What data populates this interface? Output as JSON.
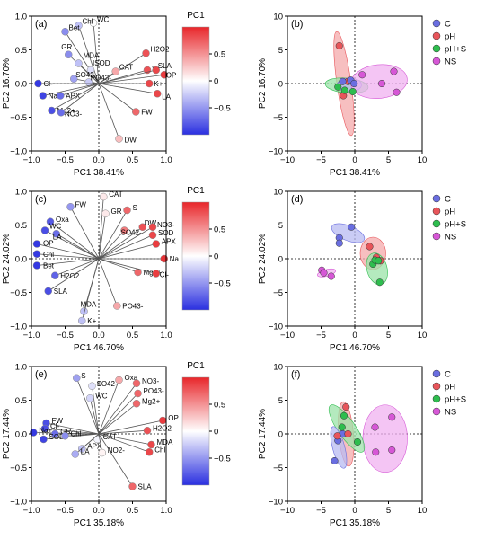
{
  "colors": {
    "C": "#6a6ee0",
    "pH": "#e8555a",
    "pH+S": "#2ebd4e",
    "NS": "#d657d6",
    "C_fill": "#b8bbf2",
    "pH_fill": "#f4a9ab",
    "pH+S_fill": "#9be3a8",
    "NS_fill": "#f0b2f0"
  },
  "colorbar": {
    "title": "PC1",
    "ticks": [
      "0.5",
      "0",
      "−0.5"
    ]
  },
  "chart_data": [
    {
      "panel": "(a)",
      "type": "scatter",
      "kind": "loading",
      "xlabel": "PC1 38.41%",
      "ylabel": "PC2 16.70%",
      "xlim": [
        -1.0,
        1.0
      ],
      "ylim": [
        -1.0,
        1.0
      ],
      "xticks": [
        "−1.0",
        "−0.5",
        "0.0",
        "0.5",
        "1.0"
      ],
      "yticks": [
        "−1.0",
        "−0.5",
        "0.0",
        "0.5",
        "1.0"
      ],
      "points": [
        {
          "label": "WC",
          "x": -0.08,
          "y": 0.9,
          "v": 0.0,
          "lx": 4,
          "ly": -1
        },
        {
          "label": "Chl",
          "x": -0.3,
          "y": 0.86,
          "v": -0.3,
          "lx": 4,
          "ly": -2
        },
        {
          "label": "Bet",
          "x": -0.5,
          "y": 0.77,
          "v": -0.55,
          "lx": 4,
          "ly": -2
        },
        {
          "label": "GR",
          "x": -0.45,
          "y": 0.43,
          "v": -0.55,
          "lx": -8,
          "ly": -6
        },
        {
          "label": "MDA",
          "x": -0.3,
          "y": 0.3,
          "v": -0.3,
          "lx": 0,
          "ly": -6
        },
        {
          "label": "ISOD",
          "x": -0.12,
          "y": 0.2,
          "v": -0.15,
          "lx": 2,
          "ly": -5
        },
        {
          "label": "SO42-",
          "x": -0.37,
          "y": 0.07,
          "v": -0.45,
          "lx": 2,
          "ly": -2
        },
        {
          "label": "PO43-",
          "x": -0.15,
          "y": 0.02,
          "v": -0.25,
          "lx": 2,
          "ly": -2
        },
        {
          "label": "Cl-",
          "x": -0.9,
          "y": 0.0,
          "v": -0.95,
          "lx": 6,
          "ly": 3
        },
        {
          "label": "Na+",
          "x": -0.83,
          "y": -0.18,
          "v": -0.9,
          "lx": 6,
          "ly": 3
        },
        {
          "label": "APX",
          "x": -0.57,
          "y": -0.18,
          "v": -0.7,
          "lx": 6,
          "ly": 3
        },
        {
          "label": "Mg2+",
          "x": -0.7,
          "y": -0.4,
          "v": -0.85,
          "lx": 6,
          "ly": 3
        },
        {
          "label": "NO3-",
          "x": -0.56,
          "y": -0.43,
          "v": -0.7,
          "lx": 4,
          "ly": 4
        },
        {
          "label": "H2O2",
          "x": 0.7,
          "y": 0.45,
          "v": 0.8,
          "lx": 5,
          "ly": -2
        },
        {
          "label": "CAT",
          "x": 0.25,
          "y": 0.18,
          "v": 0.4,
          "lx": 4,
          "ly": -2
        },
        {
          "label": "S",
          "x": 0.72,
          "y": 0.2,
          "v": 0.8,
          "lx": 5,
          "ly": 1
        },
        {
          "label": "SLA",
          "x": 0.85,
          "y": 0.2,
          "v": 0.85,
          "lx": 2,
          "ly": -2
        },
        {
          "label": "OP",
          "x": 0.97,
          "y": 0.13,
          "v": 0.9,
          "lx": 2,
          "ly": 3
        },
        {
          "label": "K+",
          "x": 0.75,
          "y": 0.0,
          "v": 0.85,
          "lx": 5,
          "ly": 3
        },
        {
          "label": "LA",
          "x": 0.87,
          "y": -0.15,
          "v": 0.85,
          "lx": 0,
          "ly": 6
        },
        {
          "label": "FW",
          "x": 0.55,
          "y": -0.42,
          "v": 0.7,
          "lx": 6,
          "ly": 3
        },
        {
          "label": "DW",
          "x": 0.3,
          "y": -0.82,
          "v": 0.3,
          "lx": 6,
          "ly": 4
        }
      ]
    },
    {
      "panel": "(b)",
      "type": "scatter",
      "kind": "score",
      "xlabel": "PC1 38.41%",
      "ylabel": "PC2 16.70%",
      "xlim": [
        -10,
        10
      ],
      "ylim": [
        -10,
        10
      ],
      "xticks": [
        "−10",
        "−5",
        "0",
        "5",
        "10"
      ],
      "yticks": [
        "−10",
        "−5",
        "0",
        "5",
        "10"
      ],
      "ellipses": [
        {
          "group": "pH",
          "cx": -1.6,
          "cy": 0.0,
          "rx": 1.05,
          "ry": 7.8,
          "angle": 8
        },
        {
          "group": "pH+S",
          "cx": -1.2,
          "cy": -0.3,
          "rx": 3.2,
          "ry": 1.1,
          "angle": -5
        },
        {
          "group": "C",
          "cx": -0.8,
          "cy": -0.2,
          "rx": 1.8,
          "ry": 1.0,
          "angle": 0
        },
        {
          "group": "NS",
          "cx": 3.6,
          "cy": 0.3,
          "rx": 4.2,
          "ry": 2.5,
          "angle": 6
        }
      ],
      "points": [
        {
          "group": "pH",
          "x": -2.3,
          "y": 5.6
        },
        {
          "group": "pH",
          "x": -1.7,
          "y": -1.8
        },
        {
          "group": "pH",
          "x": -1.0,
          "y": 0.3
        },
        {
          "group": "pH+S",
          "x": -2.5,
          "y": -0.5
        },
        {
          "group": "pH+S",
          "x": -0.3,
          "y": -1.2
        },
        {
          "group": "pH+S",
          "x": -1.5,
          "y": -1.0
        },
        {
          "group": "C",
          "x": -1.8,
          "y": 0.3
        },
        {
          "group": "C",
          "x": -0.6,
          "y": 0.5
        },
        {
          "group": "C",
          "x": -0.1,
          "y": 0.0
        },
        {
          "group": "NS",
          "x": 1.1,
          "y": 1.3
        },
        {
          "group": "NS",
          "x": 4.0,
          "y": 0.0
        },
        {
          "group": "NS",
          "x": 5.8,
          "y": 1.8
        },
        {
          "group": "NS",
          "x": 6.2,
          "y": -1.3
        }
      ]
    },
    {
      "panel": "(c)",
      "type": "scatter",
      "kind": "loading",
      "xlabel": "PC1 46.70%",
      "ylabel": "PC2 24.02%",
      "xlim": [
        -1.0,
        1.0
      ],
      "ylim": [
        -1.0,
        1.0
      ],
      "xticks": [
        "−1.0",
        "−0.5",
        "0.0",
        "0.5",
        "1.0"
      ],
      "yticks": [
        "−1.0",
        "−0.5",
        "0.0",
        "0.5",
        "1.0"
      ],
      "points": [
        {
          "label": "FW",
          "x": -0.42,
          "y": 0.77,
          "v": -0.5,
          "lx": 5,
          "ly": 0
        },
        {
          "label": "Oxa",
          "x": -0.72,
          "y": 0.55,
          "v": -0.8,
          "lx": 6,
          "ly": 0
        },
        {
          "label": "WC",
          "x": -0.8,
          "y": 0.42,
          "v": -0.85,
          "lx": 5,
          "ly": -2
        },
        {
          "label": "LA",
          "x": -0.63,
          "y": 0.37,
          "v": -0.7,
          "lx": -4,
          "ly": 6
        },
        {
          "label": "OP",
          "x": -0.92,
          "y": 0.22,
          "v": -0.95,
          "lx": 7,
          "ly": 2
        },
        {
          "label": "Chl",
          "x": -0.92,
          "y": 0.07,
          "v": -0.95,
          "lx": 7,
          "ly": 3
        },
        {
          "label": "Bet",
          "x": -0.92,
          "y": -0.1,
          "v": -0.95,
          "lx": 7,
          "ly": 3
        },
        {
          "label": "H2O2",
          "x": -0.65,
          "y": -0.25,
          "v": -0.75,
          "lx": 6,
          "ly": 3
        },
        {
          "label": "SLA",
          "x": -0.75,
          "y": -0.48,
          "v": -0.85,
          "lx": 6,
          "ly": 3
        },
        {
          "label": "MDA",
          "x": -0.22,
          "y": -0.78,
          "v": -0.3,
          "lx": -4,
          "ly": -5
        },
        {
          "label": "K+",
          "x": -0.25,
          "y": -0.92,
          "v": -0.3,
          "lx": 6,
          "ly": 3
        },
        {
          "label": "CAT",
          "x": 0.07,
          "y": 0.92,
          "v": 0.1,
          "lx": 6,
          "ly": 0
        },
        {
          "label": "GR",
          "x": 0.1,
          "y": 0.67,
          "v": 0.1,
          "lx": 6,
          "ly": 0
        },
        {
          "label": "S",
          "x": 0.42,
          "y": 0.72,
          "v": 0.7,
          "lx": 6,
          "ly": 0
        },
        {
          "label": "SO42-",
          "x": 0.38,
          "y": 0.42,
          "v": 0.6,
          "lx": -4,
          "ly": 5
        },
        {
          "label": "DW",
          "x": 0.65,
          "y": 0.47,
          "v": 0.8,
          "lx": 2,
          "ly": -2
        },
        {
          "label": "NO3-",
          "x": 0.8,
          "y": 0.47,
          "v": 0.85,
          "lx": 0,
          "ly": 0
        },
        {
          "label": "SOD",
          "x": 0.8,
          "y": 0.35,
          "v": 0.85,
          "lx": 6,
          "ly": 0
        },
        {
          "label": "APX",
          "x": 0.85,
          "y": 0.22,
          "v": 0.9,
          "lx": 6,
          "ly": 0
        },
        {
          "label": "Na",
          "x": 0.97,
          "y": 0.0,
          "v": 0.95,
          "lx": 6,
          "ly": 3
        },
        {
          "label": "Mg2+",
          "x": 0.58,
          "y": -0.2,
          "v": 0.7,
          "lx": 6,
          "ly": 3
        },
        {
          "label": "Cl-",
          "x": 0.85,
          "y": -0.22,
          "v": 0.9,
          "lx": 4,
          "ly": 4
        },
        {
          "label": "PO43-",
          "x": 0.27,
          "y": -0.7,
          "v": 0.4,
          "lx": 6,
          "ly": 3
        }
      ]
    },
    {
      "panel": "(d)",
      "type": "scatter",
      "kind": "score",
      "xlabel": "PC1 46.70%",
      "ylabel": "PC2 24.02%",
      "xlim": [
        -10,
        10
      ],
      "ylim": [
        -10,
        10
      ],
      "xticks": [
        "−10",
        "−5",
        "0",
        "5",
        "10"
      ],
      "yticks": [
        "−10",
        "−5",
        "0",
        "5",
        "10"
      ],
      "ellipses": [
        {
          "group": "C",
          "cx": -1.0,
          "cy": 3.8,
          "rx": 2.6,
          "ry": 1.1,
          "angle": -22
        },
        {
          "group": "pH",
          "cx": 2.7,
          "cy": 0.8,
          "rx": 1.9,
          "ry": 2.4,
          "angle": 0
        },
        {
          "group": "pH+S",
          "cx": 3.3,
          "cy": -1.5,
          "rx": 1.5,
          "ry": 2.4,
          "angle": 15
        },
        {
          "group": "NS",
          "cx": -4.2,
          "cy": -2.1,
          "rx": 1.4,
          "ry": 0.5,
          "angle": 15
        }
      ],
      "points": [
        {
          "group": "C",
          "x": -2.3,
          "y": 3.1
        },
        {
          "group": "C",
          "x": -2.3,
          "y": 2.3
        },
        {
          "group": "C",
          "x": -0.5,
          "y": 4.7
        },
        {
          "group": "pH",
          "x": 2.2,
          "y": 1.8
        },
        {
          "group": "pH",
          "x": 3.2,
          "y": 0.2
        },
        {
          "group": "pH",
          "x": 3.8,
          "y": -0.3
        },
        {
          "group": "pH+S",
          "x": 2.7,
          "y": -0.8
        },
        {
          "group": "pH+S",
          "x": 3.0,
          "y": -0.2
        },
        {
          "group": "pH+S",
          "x": 3.5,
          "y": -0.3
        },
        {
          "group": "pH+S",
          "x": 3.7,
          "y": -3.5
        },
        {
          "group": "NS",
          "x": -4.9,
          "y": -1.7
        },
        {
          "group": "NS",
          "x": -4.6,
          "y": -2.1
        },
        {
          "group": "NS",
          "x": -3.5,
          "y": -2.6
        }
      ]
    },
    {
      "panel": "(e)",
      "type": "scatter",
      "kind": "loading",
      "xlabel": "PC1 35.18%",
      "ylabel": "PC2 17.44%",
      "xlim": [
        -1.0,
        1.0
      ],
      "ylim": [
        -1.0,
        1.0
      ],
      "xticks": [
        "−1.0",
        "−0.5",
        "0.0",
        "0.5",
        "1.0"
      ],
      "yticks": [
        "−1.0",
        "−0.5",
        "0.0",
        "0.5",
        "1.0"
      ],
      "points": [
        {
          "label": "S",
          "x": -0.33,
          "y": 0.83,
          "v": -0.45,
          "lx": 5,
          "ly": 0
        },
        {
          "label": "SO42-",
          "x": -0.1,
          "y": 0.71,
          "v": -0.15,
          "lx": 5,
          "ly": 0
        },
        {
          "label": "WC",
          "x": -0.13,
          "y": 0.53,
          "v": -0.2,
          "lx": 6,
          "ly": 0
        },
        {
          "label": "Oxa",
          "x": 0.3,
          "y": 0.8,
          "v": 0.4,
          "lx": 6,
          "ly": 0
        },
        {
          "label": "NO3-",
          "x": 0.56,
          "y": 0.75,
          "v": 0.7,
          "lx": 6,
          "ly": 0
        },
        {
          "label": "PO43-",
          "x": 0.58,
          "y": 0.6,
          "v": 0.7,
          "lx": 6,
          "ly": 0
        },
        {
          "label": "Mg2+",
          "x": 0.56,
          "y": 0.45,
          "v": 0.7,
          "lx": 6,
          "ly": 0
        },
        {
          "label": "OP",
          "x": 0.95,
          "y": 0.2,
          "v": 0.9,
          "lx": 6,
          "ly": 0
        },
        {
          "label": "H2O2",
          "x": 0.72,
          "y": 0.05,
          "v": 0.8,
          "lx": 6,
          "ly": 0
        },
        {
          "label": "FW",
          "x": -0.78,
          "y": 0.16,
          "v": -0.85,
          "lx": 6,
          "ly": 0
        },
        {
          "label": "Cl-",
          "x": -0.8,
          "y": 0.08,
          "v": -0.85,
          "lx": 6,
          "ly": 0
        },
        {
          "label": "Na+",
          "x": -0.97,
          "y": 0.02,
          "v": -0.95,
          "lx": 6,
          "ly": 0
        },
        {
          "label": "GR",
          "x": -0.65,
          "y": 0.0,
          "v": -0.7,
          "lx": 6,
          "ly": 0
        },
        {
          "label": "SOD",
          "x": -0.82,
          "y": -0.08,
          "v": -0.9,
          "lx": 6,
          "ly": 0
        },
        {
          "label": "Chl",
          "x": -0.5,
          "y": -0.03,
          "v": -0.55,
          "lx": 6,
          "ly": 0
        },
        {
          "label": "CAT",
          "x": -0.02,
          "y": -0.08,
          "v": -0.05,
          "lx": 6,
          "ly": 0
        },
        {
          "label": "APX",
          "x": -0.25,
          "y": -0.22,
          "v": -0.3,
          "lx": 6,
          "ly": 0
        },
        {
          "label": "LA",
          "x": -0.35,
          "y": -0.3,
          "v": -0.4,
          "lx": 6,
          "ly": 0
        },
        {
          "label": "NO2-",
          "x": 0.05,
          "y": -0.28,
          "v": 0.05,
          "lx": 6,
          "ly": 0
        },
        {
          "label": "MDA",
          "x": 0.78,
          "y": -0.16,
          "v": 0.85,
          "lx": 6,
          "ly": 0
        },
        {
          "label": "Chl",
          "x": 0.75,
          "y": -0.27,
          "v": 0.85,
          "lx": 6,
          "ly": 0
        },
        {
          "label": "SLA",
          "x": 0.5,
          "y": -0.78,
          "v": 0.7,
          "lx": 6,
          "ly": 3
        }
      ]
    },
    {
      "panel": "(f)",
      "type": "scatter",
      "kind": "score",
      "xlabel": "PC1 35.18%",
      "ylabel": "PC2 17.44%",
      "xlim": [
        -10,
        10
      ],
      "ylim": [
        -10,
        10
      ],
      "xticks": [
        "−10",
        "−5",
        "0",
        "5",
        "10"
      ],
      "yticks": [
        "−10",
        "−5",
        "0",
        "5",
        "10"
      ],
      "ellipses": [
        {
          "group": "NS",
          "cx": 4.5,
          "cy": -0.7,
          "rx": 3.3,
          "ry": 5.0,
          "angle": 0
        },
        {
          "group": "pH",
          "cx": -1.3,
          "cy": 0.0,
          "rx": 1.1,
          "ry": 4.8,
          "angle": 5
        },
        {
          "group": "pH+S",
          "cx": -1.2,
          "cy": 0.8,
          "rx": 4.2,
          "ry": 1.3,
          "angle": -55
        },
        {
          "group": "C",
          "cx": -2.4,
          "cy": -2.0,
          "rx": 0.9,
          "ry": 3.2,
          "angle": 15
        }
      ],
      "points": [
        {
          "group": "C",
          "x": -3.0,
          "y": -4.0
        },
        {
          "group": "C",
          "x": -2.5,
          "y": -1.0
        },
        {
          "group": "C",
          "x": -1.8,
          "y": 0.0
        },
        {
          "group": "pH",
          "x": -1.3,
          "y": 4.0
        },
        {
          "group": "pH",
          "x": -2.6,
          "y": -0.3
        },
        {
          "group": "pH",
          "x": -1.0,
          "y": 0.0
        },
        {
          "group": "pH+S",
          "x": -1.6,
          "y": 2.7
        },
        {
          "group": "pH+S",
          "x": -1.9,
          "y": 1.0
        },
        {
          "group": "pH+S",
          "x": 0.4,
          "y": -1.2
        },
        {
          "group": "NS",
          "x": 3.0,
          "y": 1.0
        },
        {
          "group": "NS",
          "x": 5.5,
          "y": 2.5
        },
        {
          "group": "NS",
          "x": 3.1,
          "y": -2.7
        },
        {
          "group": "NS",
          "x": 5.5,
          "y": -2.4
        }
      ]
    }
  ],
  "legend": [
    "C",
    "pH",
    "pH+S",
    "NS"
  ]
}
